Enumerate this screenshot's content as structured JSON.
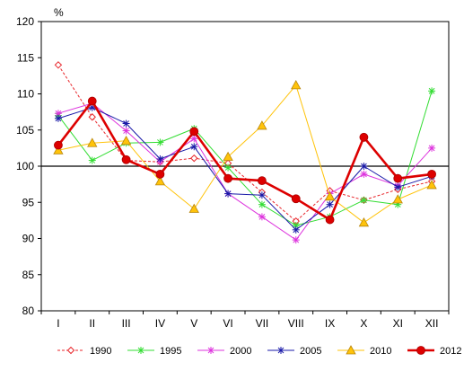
{
  "chart_data": {
    "type": "line",
    "ylabel": "%",
    "ylim": [
      80,
      120
    ],
    "yticks": [
      80,
      85,
      90,
      95,
      100,
      105,
      110,
      115,
      120
    ],
    "reference_line": 100,
    "grid": false,
    "legend_position": "bottom",
    "categories": [
      "I",
      "II",
      "III",
      "IV",
      "V",
      "VI",
      "VII",
      "VIII",
      "IX",
      "X",
      "XI",
      "XII"
    ],
    "series": [
      {
        "name": "1990",
        "color": "#e8252a",
        "line_style": "dashed",
        "marker": "diamond-open",
        "values": [
          114.0,
          106.8,
          100.8,
          100.6,
          101.1,
          100.4,
          96.4,
          92.4,
          96.6,
          95.3,
          96.8,
          97.9
        ]
      },
      {
        "name": "1995",
        "color": "#33dd33",
        "line_style": "solid",
        "marker": "star",
        "values": [
          107.0,
          100.8,
          103.2,
          103.3,
          105.2,
          99.8,
          94.7,
          91.8,
          93.0,
          95.3,
          94.7,
          110.4
        ]
      },
      {
        "name": "2000",
        "color": "#dd33dd",
        "line_style": "solid",
        "marker": "star",
        "values": [
          107.3,
          108.7,
          104.9,
          100.6,
          103.8,
          96.2,
          93.0,
          89.8,
          96.2,
          98.9,
          97.3,
          102.5
        ]
      },
      {
        "name": "2005",
        "color": "#1a1aa8",
        "line_style": "solid",
        "marker": "star",
        "values": [
          106.6,
          108.1,
          105.9,
          101.0,
          102.7,
          96.2,
          96.0,
          91.2,
          94.7,
          100.0,
          97.1,
          98.6
        ]
      },
      {
        "name": "2010",
        "color": "#ffc30a",
        "line_style": "solid",
        "marker": "triangle",
        "values": [
          102.2,
          103.2,
          103.5,
          97.9,
          94.1,
          101.3,
          105.6,
          111.2,
          95.8,
          92.2,
          95.4,
          97.4
        ]
      },
      {
        "name": "2012",
        "color": "#dd0000",
        "line_style": "bold",
        "marker": "circle",
        "values": [
          102.9,
          109.0,
          100.9,
          98.9,
          104.8,
          98.3,
          98.0,
          95.5,
          92.6,
          104.0,
          98.3,
          98.9
        ]
      }
    ]
  }
}
